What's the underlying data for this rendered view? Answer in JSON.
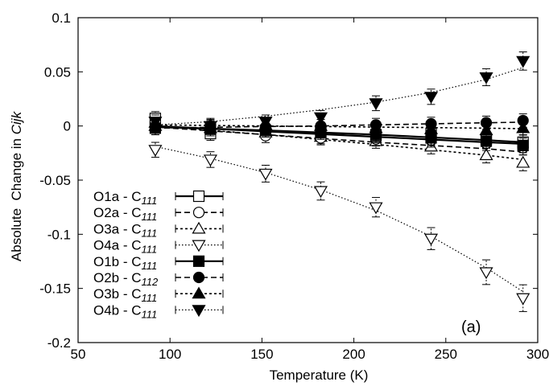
{
  "chart_data": {
    "type": "line",
    "title": "",
    "xlabel": "Temperature (K)",
    "ylabel_main": "Absolute  Change in ",
    "ylabel_italic": "Cijk",
    "xlim": [
      50,
      300
    ],
    "ylim": [
      -0.2,
      0.1
    ],
    "xticks": [
      50,
      100,
      150,
      200,
      250,
      300
    ],
    "yticks": [
      -0.2,
      -0.15,
      -0.1,
      -0.05,
      0,
      0.05,
      0.1
    ],
    "xtick_labels": [
      "50",
      "100",
      "150",
      "200",
      "250",
      "300"
    ],
    "ytick_labels": [
      "-0.2",
      "-0.15",
      "-0.1",
      "-0.05",
      "0",
      "0.05",
      "0.1"
    ],
    "grid": false,
    "legend_position": "left",
    "panel_label": "(a)",
    "series": [
      {
        "name_main": "O1a - C",
        "name_sub": "111",
        "marker": "square-open",
        "dash": "solid",
        "line_width": 2.2,
        "x": [
          92,
          122,
          152,
          182,
          212,
          242,
          272,
          292
        ],
        "y": [
          0.007,
          -0.007,
          -0.004,
          -0.006,
          -0.009,
          -0.007,
          -0.012,
          -0.015
        ],
        "fit": [
          0.0,
          -0.0025,
          -0.005,
          -0.0075,
          -0.01,
          -0.0125,
          -0.015,
          -0.0165
        ]
      },
      {
        "name_main": "O2a - C",
        "name_sub": "111",
        "marker": "circle-open",
        "dash": "dash",
        "line_width": 1.6,
        "x": [
          92,
          122,
          152,
          182,
          212,
          242,
          272,
          292
        ],
        "y": [
          0.001,
          -0.005,
          -0.009,
          -0.011,
          -0.012,
          -0.013,
          -0.016,
          -0.02
        ],
        "fit": [
          -0.001,
          -0.0045,
          -0.008,
          -0.0115,
          -0.015,
          -0.018,
          -0.021,
          -0.024
        ]
      },
      {
        "name_main": "O3a - C",
        "name_sub": "111",
        "marker": "triangle-up-open",
        "dash": "dot",
        "line_width": 1.6,
        "x": [
          92,
          122,
          152,
          182,
          212,
          242,
          272,
          292
        ],
        "y": [
          0.003,
          -0.002,
          -0.006,
          -0.01,
          -0.014,
          -0.019,
          -0.027,
          -0.034
        ],
        "fit": [
          0.0,
          -0.004,
          -0.008,
          -0.0125,
          -0.017,
          -0.022,
          -0.027,
          -0.031
        ]
      },
      {
        "name_main": "O4a - C",
        "name_sub": "111",
        "marker": "triangle-down-open",
        "dash": "finedot",
        "line_width": 1.2,
        "x": [
          92,
          122,
          152,
          182,
          212,
          242,
          272,
          292
        ],
        "y": [
          -0.022,
          -0.031,
          -0.044,
          -0.06,
          -0.075,
          -0.104,
          -0.135,
          -0.159
        ],
        "fit": [
          -0.019,
          -0.03,
          -0.043,
          -0.059,
          -0.078,
          -0.102,
          -0.131,
          -0.153
        ]
      },
      {
        "name_main": "O1b - C",
        "name_sub": "111",
        "marker": "square-filled",
        "dash": "solid",
        "line_width": 2.2,
        "x": [
          92,
          122,
          152,
          182,
          212,
          242,
          272,
          292
        ],
        "y": [
          -0.002,
          -0.003,
          -0.004,
          -0.006,
          -0.008,
          -0.011,
          -0.014,
          -0.018
        ],
        "fit": [
          -0.001,
          -0.0025,
          -0.004,
          -0.006,
          -0.008,
          -0.0105,
          -0.013,
          -0.015
        ]
      },
      {
        "name_main": "O2b - C",
        "name_sub": "112",
        "marker": "circle-filled",
        "dash": "dash",
        "line_width": 1.6,
        "x": [
          92,
          122,
          152,
          182,
          212,
          242,
          272,
          292
        ],
        "y": [
          -0.002,
          -0.001,
          -0.001,
          0.0,
          0.001,
          0.002,
          0.003,
          0.005
        ],
        "fit": [
          -0.002,
          -0.0012,
          -0.0005,
          0.0,
          0.001,
          0.002,
          0.003,
          0.0035
        ]
      },
      {
        "name_main": "O3b - C",
        "name_sub": "111",
        "marker": "triangle-up-filled",
        "dash": "dot",
        "line_width": 1.6,
        "x": [
          92,
          122,
          152,
          182,
          212,
          242,
          272,
          292
        ],
        "y": [
          0.0,
          0.001,
          0.001,
          0.0,
          -0.002,
          -0.003,
          -0.004,
          -0.002
        ],
        "fit": [
          0.001,
          0.0005,
          0.0,
          -0.0005,
          -0.001,
          -0.0015,
          -0.002,
          -0.0025
        ]
      },
      {
        "name_main": "O4b - C",
        "name_sub": "111",
        "marker": "triangle-down-filled",
        "dash": "finedot",
        "line_width": 1.2,
        "x": [
          92,
          122,
          152,
          182,
          212,
          242,
          272,
          292
        ],
        "y": [
          0.004,
          0.0,
          0.004,
          0.008,
          0.021,
          0.027,
          0.045,
          0.06
        ],
        "fit": [
          0.001,
          0.004,
          0.009,
          0.015,
          0.022,
          0.031,
          0.043,
          0.054
        ]
      }
    ]
  }
}
